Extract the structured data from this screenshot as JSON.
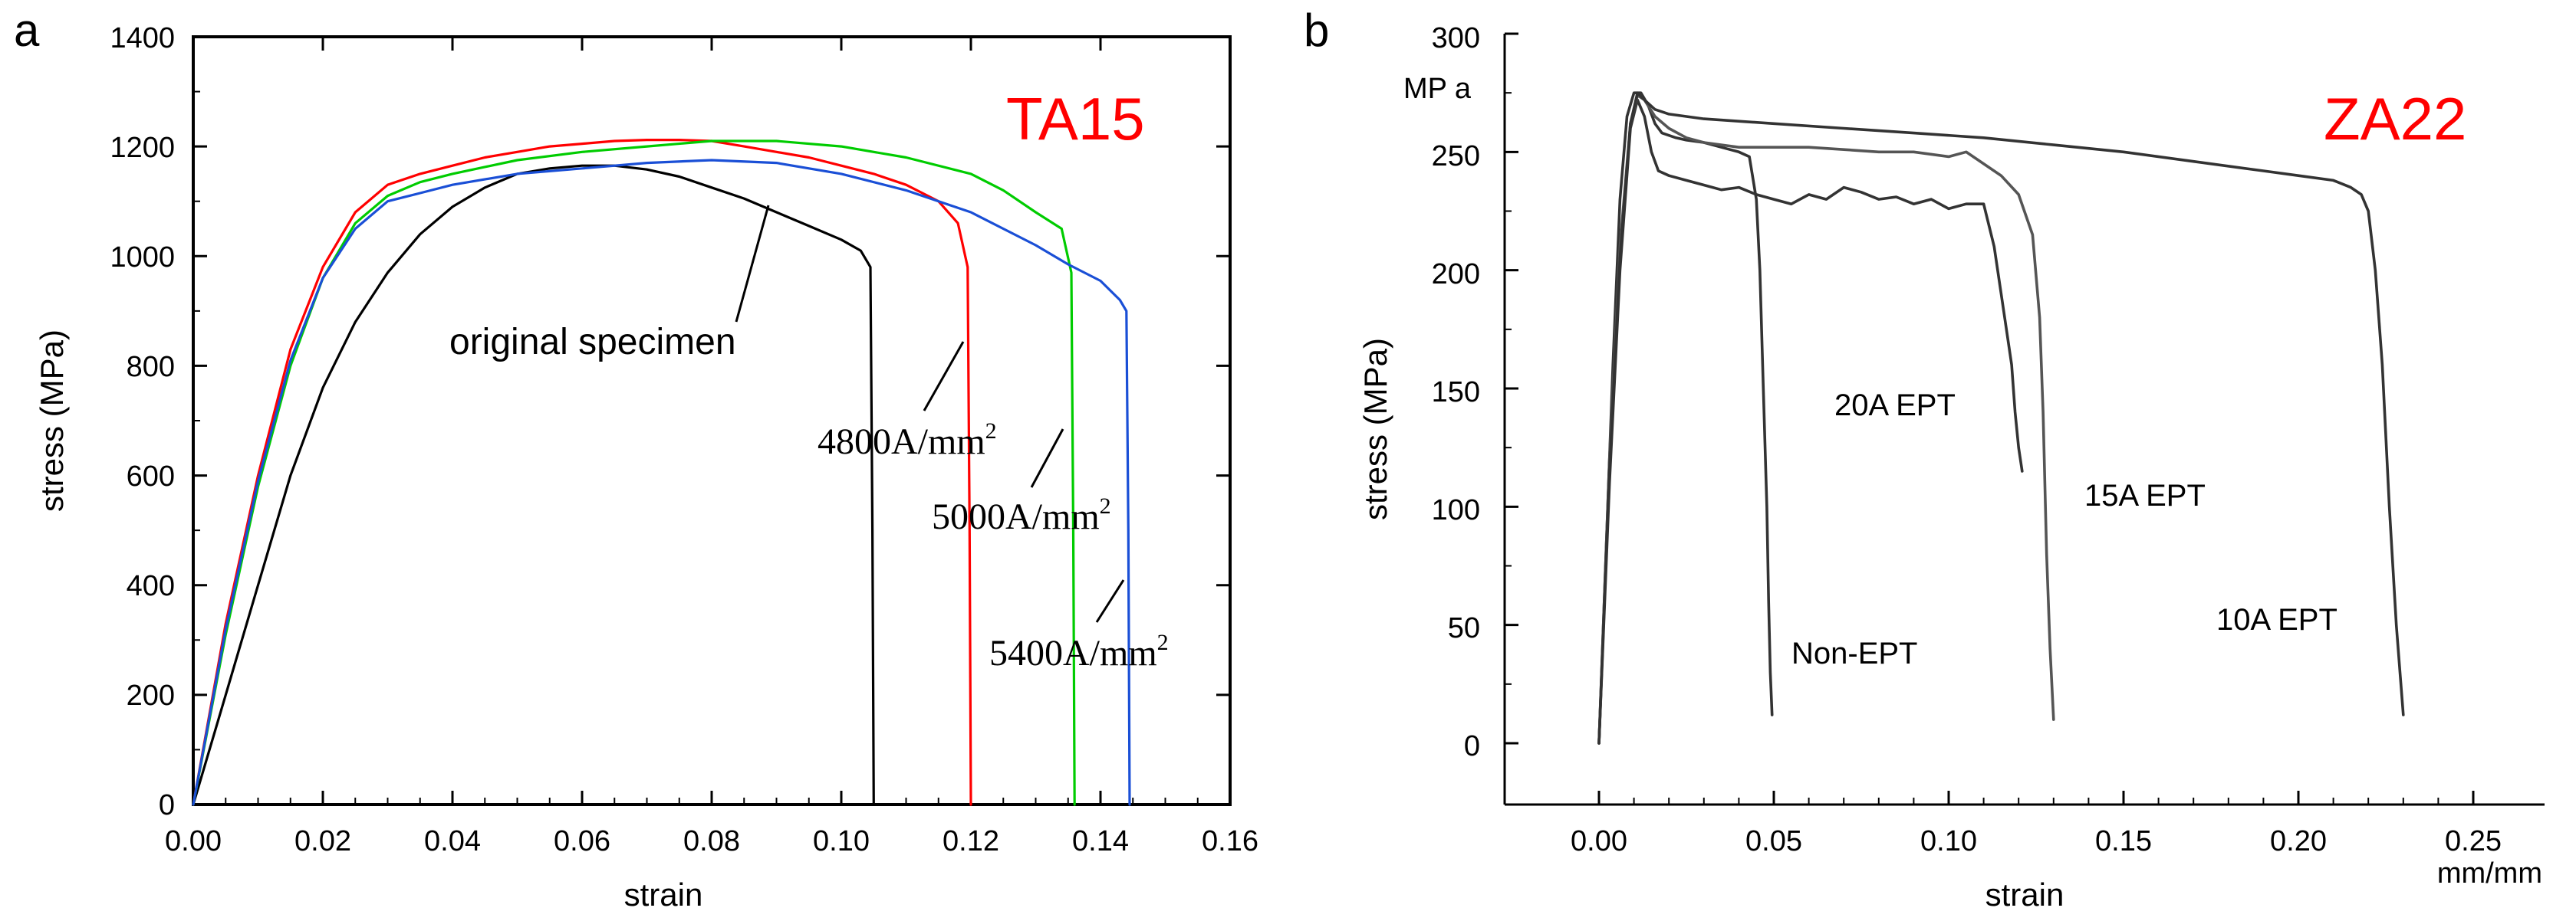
{
  "chart_data": [
    {
      "panel_label": "a",
      "type": "line",
      "annotation": "TA15",
      "xlabel": "strain",
      "ylabel": "stress (MPa)",
      "xlim": [
        0.0,
        0.16
      ],
      "ylim": [
        0,
        1400
      ],
      "xticks": [
        "0.00",
        "0.02",
        "0.04",
        "0.06",
        "0.08",
        "0.10",
        "0.12",
        "0.14",
        "0.16"
      ],
      "yticks": [
        "0",
        "200",
        "400",
        "600",
        "800",
        "1000",
        "1200",
        "1400"
      ],
      "xtick_values": [
        0.0,
        0.02,
        0.04,
        0.06,
        0.08,
        0.1,
        0.12,
        0.14,
        0.16
      ],
      "ytick_values": [
        0,
        200,
        400,
        600,
        800,
        1000,
        1200,
        1400
      ],
      "series": [
        {
          "name": "original specimen",
          "color": "#000000",
          "x": [
            0.0,
            0.005,
            0.01,
            0.015,
            0.02,
            0.025,
            0.03,
            0.035,
            0.04,
            0.045,
            0.05,
            0.055,
            0.06,
            0.065,
            0.07,
            0.075,
            0.08,
            0.085,
            0.09,
            0.095,
            0.1,
            0.103,
            0.1045,
            0.1048,
            0.105
          ],
          "y": [
            0,
            200,
            400,
            600,
            760,
            880,
            970,
            1040,
            1090,
            1125,
            1150,
            1160,
            1165,
            1165,
            1158,
            1145,
            1125,
            1105,
            1080,
            1055,
            1030,
            1010,
            980,
            500,
            0
          ]
        },
        {
          "name": "4800A/mm2",
          "color": "#ff0000",
          "x": [
            0.0,
            0.005,
            0.01,
            0.015,
            0.02,
            0.025,
            0.03,
            0.035,
            0.04,
            0.045,
            0.05,
            0.055,
            0.06,
            0.065,
            0.07,
            0.075,
            0.08,
            0.085,
            0.09,
            0.095,
            0.1,
            0.105,
            0.11,
            0.115,
            0.118,
            0.1195,
            0.1198,
            0.12
          ],
          "y": [
            0,
            330,
            600,
            830,
            980,
            1080,
            1130,
            1150,
            1165,
            1180,
            1190,
            1200,
            1205,
            1210,
            1212,
            1212,
            1210,
            1200,
            1190,
            1180,
            1165,
            1150,
            1130,
            1100,
            1060,
            980,
            500,
            0
          ]
        },
        {
          "name": "5000A/mm2",
          "color": "#00cc00",
          "x": [
            0.0,
            0.005,
            0.01,
            0.015,
            0.02,
            0.025,
            0.03,
            0.035,
            0.04,
            0.05,
            0.06,
            0.07,
            0.08,
            0.09,
            0.1,
            0.11,
            0.12,
            0.125,
            0.13,
            0.134,
            0.1355,
            0.1358,
            0.136
          ],
          "y": [
            0,
            310,
            580,
            800,
            960,
            1060,
            1110,
            1135,
            1150,
            1175,
            1190,
            1200,
            1210,
            1210,
            1200,
            1180,
            1150,
            1120,
            1080,
            1050,
            970,
            500,
            0
          ]
        },
        {
          "name": "5400A/mm2",
          "color": "#1a4fd6",
          "x": [
            0.0,
            0.005,
            0.01,
            0.015,
            0.02,
            0.025,
            0.03,
            0.035,
            0.04,
            0.05,
            0.06,
            0.07,
            0.08,
            0.09,
            0.1,
            0.11,
            0.12,
            0.13,
            0.135,
            0.14,
            0.143,
            0.144,
            0.1443,
            0.1445
          ],
          "y": [
            0,
            320,
            590,
            810,
            960,
            1050,
            1100,
            1115,
            1130,
            1150,
            1160,
            1170,
            1175,
            1170,
            1150,
            1120,
            1080,
            1020,
            985,
            955,
            920,
            900,
            500,
            0
          ]
        }
      ],
      "annotations": [
        {
          "text": "original specimen",
          "font": "sans"
        },
        {
          "text": "4800A/mm",
          "superscript": "2",
          "font": "serif"
        },
        {
          "text": "5000A/mm",
          "superscript": "2",
          "font": "serif"
        },
        {
          "text": "5400A/mm",
          "superscript": "2",
          "font": "serif"
        }
      ]
    },
    {
      "panel_label": "b",
      "type": "line",
      "annotation": "ZA22",
      "xlabel": "strain",
      "x_unit": "mm/mm",
      "ylabel": "stress (MPa)",
      "y_unit": "MP a",
      "xlim": [
        -0.025,
        0.27
      ],
      "ylim": [
        -25,
        300
      ],
      "xticks": [
        "0.00",
        "0.05",
        "0.10",
        "0.15",
        "0.20",
        "0.25"
      ],
      "yticks": [
        "0",
        "50",
        "100",
        "150",
        "200",
        "250",
        "300"
      ],
      "xtick_values": [
        0.0,
        0.05,
        0.1,
        0.15,
        0.2,
        0.25
      ],
      "ytick_values": [
        0,
        50,
        100,
        150,
        200,
        250,
        300
      ],
      "series": [
        {
          "name": "Non-EPT",
          "color": "#333333",
          "x": [
            0.0,
            0.002,
            0.004,
            0.006,
            0.008,
            0.01,
            0.012,
            0.014,
            0.016,
            0.018,
            0.022,
            0.025,
            0.03,
            0.035,
            0.04,
            0.043,
            0.045,
            0.046,
            0.047,
            0.048,
            0.0485,
            0.049,
            0.0495
          ],
          "y": [
            0,
            80,
            160,
            230,
            265,
            275,
            275,
            270,
            262,
            258,
            256,
            255,
            254,
            252,
            250,
            248,
            230,
            200,
            150,
            100,
            60,
            30,
            12
          ]
        },
        {
          "name": "20A EPT",
          "color": "#333333",
          "x": [
            0.0,
            0.003,
            0.006,
            0.009,
            0.011,
            0.013,
            0.015,
            0.017,
            0.02,
            0.025,
            0.03,
            0.035,
            0.04,
            0.045,
            0.05,
            0.055,
            0.06,
            0.065,
            0.07,
            0.075,
            0.08,
            0.085,
            0.09,
            0.095,
            0.1,
            0.105,
            0.11,
            0.113,
            0.116,
            0.118,
            0.119,
            0.12,
            0.121
          ],
          "y": [
            0,
            110,
            200,
            260,
            272,
            265,
            250,
            242,
            240,
            238,
            236,
            234,
            235,
            232,
            230,
            228,
            232,
            230,
            235,
            233,
            230,
            231,
            228,
            230,
            226,
            228,
            228,
            210,
            180,
            160,
            140,
            125,
            115
          ]
        },
        {
          "name": "15A EPT",
          "color": "#555555",
          "x": [
            0.0,
            0.003,
            0.006,
            0.009,
            0.011,
            0.013,
            0.016,
            0.02,
            0.025,
            0.03,
            0.04,
            0.05,
            0.06,
            0.07,
            0.08,
            0.09,
            0.1,
            0.105,
            0.11,
            0.115,
            0.12,
            0.124,
            0.126,
            0.127,
            0.128,
            0.129,
            0.13
          ],
          "y": [
            0,
            120,
            210,
            262,
            274,
            272,
            265,
            260,
            256,
            254,
            252,
            252,
            252,
            251,
            250,
            250,
            248,
            250,
            245,
            240,
            232,
            215,
            180,
            140,
            80,
            40,
            10
          ]
        },
        {
          "name": "10A EPT",
          "color": "#333333",
          "x": [
            0.0,
            0.003,
            0.006,
            0.009,
            0.011,
            0.013,
            0.016,
            0.02,
            0.03,
            0.05,
            0.07,
            0.09,
            0.11,
            0.13,
            0.15,
            0.17,
            0.19,
            0.2,
            0.21,
            0.215,
            0.218,
            0.22,
            0.222,
            0.224,
            0.226,
            0.228,
            0.23
          ],
          "y": [
            0,
            115,
            205,
            262,
            275,
            272,
            268,
            266,
            264,
            262,
            260,
            258,
            256,
            253,
            250,
            246,
            242,
            240,
            238,
            235,
            232,
            225,
            200,
            160,
            100,
            50,
            12
          ]
        }
      ],
      "annotations": [
        {
          "text": "Non-EPT"
        },
        {
          "text": "20A EPT"
        },
        {
          "text": "15A EPT"
        },
        {
          "text": "10A EPT"
        }
      ]
    }
  ]
}
